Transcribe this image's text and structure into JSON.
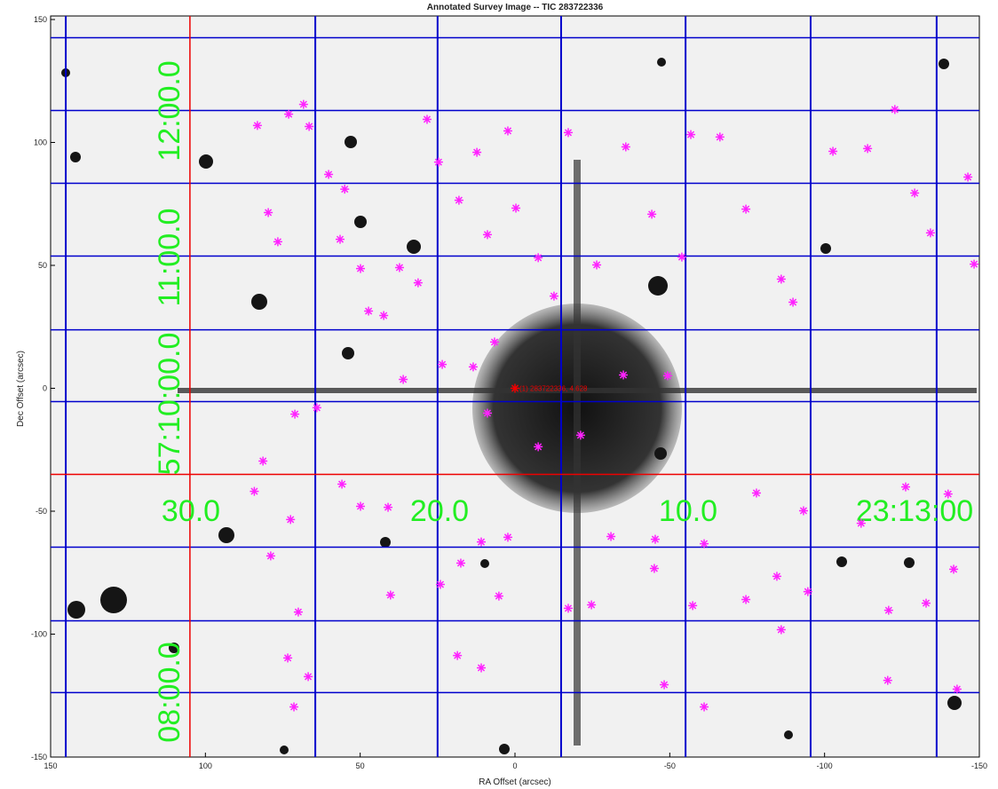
{
  "chart_data": {
    "type": "scatter",
    "title": "Annotated Survey Image -- TIC 283722336",
    "xlabel": "RA Offset (arcsec)",
    "ylabel": "Dec Offset (arcsec)",
    "xlim": [
      150,
      -150
    ],
    "ylim": [
      -150,
      150
    ],
    "xticks": [
      150,
      100,
      50,
      0,
      -50,
      -100,
      -150
    ],
    "yticks": [
      150,
      100,
      50,
      0,
      -50,
      -100,
      -150
    ],
    "marker_color": "#ff22ff",
    "ra_grid": [
      145.1,
      64.5,
      25,
      -14.9,
      -55.1,
      -95.5,
      -136.2
    ],
    "dec_grid": [
      142.6,
      113,
      83.4,
      53.8,
      23.8,
      -5.4,
      -64.6,
      -94.6,
      -123.8
    ],
    "grid_color": "#0000cc",
    "target_lines": {
      "x": 105,
      "y": -35,
      "color": "#ee0000"
    },
    "target": {
      "x": 0,
      "y": 0,
      "label": "(1) 283722336, 4.628",
      "color": "#ee0000"
    },
    "dec_labels": [
      "12:00.0",
      "11:00.0",
      "57:10:00.0",
      "08:00.0"
    ],
    "ra_labels": [
      "30.0",
      "20.0",
      "10.0",
      "23:13:00"
    ],
    "series": [
      {
        "x": [
          83.2,
          73.1,
          68.3,
          66.5,
          79.7,
          76.6,
          60.2,
          55,
          56.5,
          49.9,
          47.3,
          42.4,
          37.3,
          31.3,
          28.4,
          24.7,
          18.1,
          12.3,
          8.9,
          2.3,
          -0.3,
          -7.5,
          -12.6,
          -17.2,
          -26.4,
          -35.8,
          -44.2,
          -53.9,
          -56.8,
          -66.2,
          -74.6,
          -86,
          -89.8,
          -102.7,
          -113.9,
          -122.7,
          -129.1,
          -134.2,
          -146.3,
          -148.3,
          13.5,
          6.6,
          -35,
          -49.3,
          71.1,
          64,
          36.1,
          23.5,
          8.9,
          -21.2,
          -7.5,
          81.4,
          55.9,
          84.2,
          49.9,
          41,
          72.5,
          10.9,
          2.3,
          -31,
          -45.3,
          -61.1,
          -78,
          -93.2,
          -111.8,
          -126.2,
          -139.9,
          78.9,
          70,
          40.2,
          24.1,
          17.5,
          5.2,
          -17.2,
          -24.7,
          -45,
          -57.4,
          -74.6,
          -86,
          -94.6,
          -120.7,
          -132.8,
          -141.7,
          73.4,
          66.8,
          18.6,
          10.9,
          -48.2,
          -61.1,
          -120.4,
          -142.8,
          71.4,
          -84.6
        ],
        "y": [
          106.9,
          111.5,
          115.5,
          106.5,
          71.5,
          59.6,
          87,
          81,
          60.6,
          48.7,
          31.4,
          29.6,
          49.1,
          42.9,
          109.4,
          92,
          76.5,
          96,
          62.5,
          104.7,
          73.3,
          53.1,
          37.5,
          104,
          50.2,
          98.2,
          70.8,
          53.4,
          103.2,
          102.2,
          72.9,
          44.4,
          35,
          96.4,
          97.5,
          113.4,
          79.4,
          63.2,
          85.9,
          50.5,
          8.7,
          18.8,
          5.4,
          5.1,
          -10.5,
          -7.9,
          3.6,
          9.7,
          -10.1,
          -19.1,
          -23.8,
          -29.6,
          -39,
          -41.9,
          -48,
          -48.4,
          -53.4,
          -62.5,
          -60.6,
          -60.3,
          -61.4,
          -63.2,
          -42.6,
          -49.8,
          -54.9,
          -40.1,
          -43,
          -68.2,
          -91,
          -84.1,
          -79.8,
          -71.1,
          -84.5,
          -89.5,
          -88.1,
          -73.3,
          -88.4,
          -85.9,
          -98.2,
          -82.7,
          -90.3,
          -87.4,
          -73.6,
          -109.7,
          -117.3,
          -108.7,
          -113.7,
          -120.6,
          -129.6,
          -118.8,
          -122.4,
          -129.6,
          -76.5
        ]
      }
    ]
  }
}
